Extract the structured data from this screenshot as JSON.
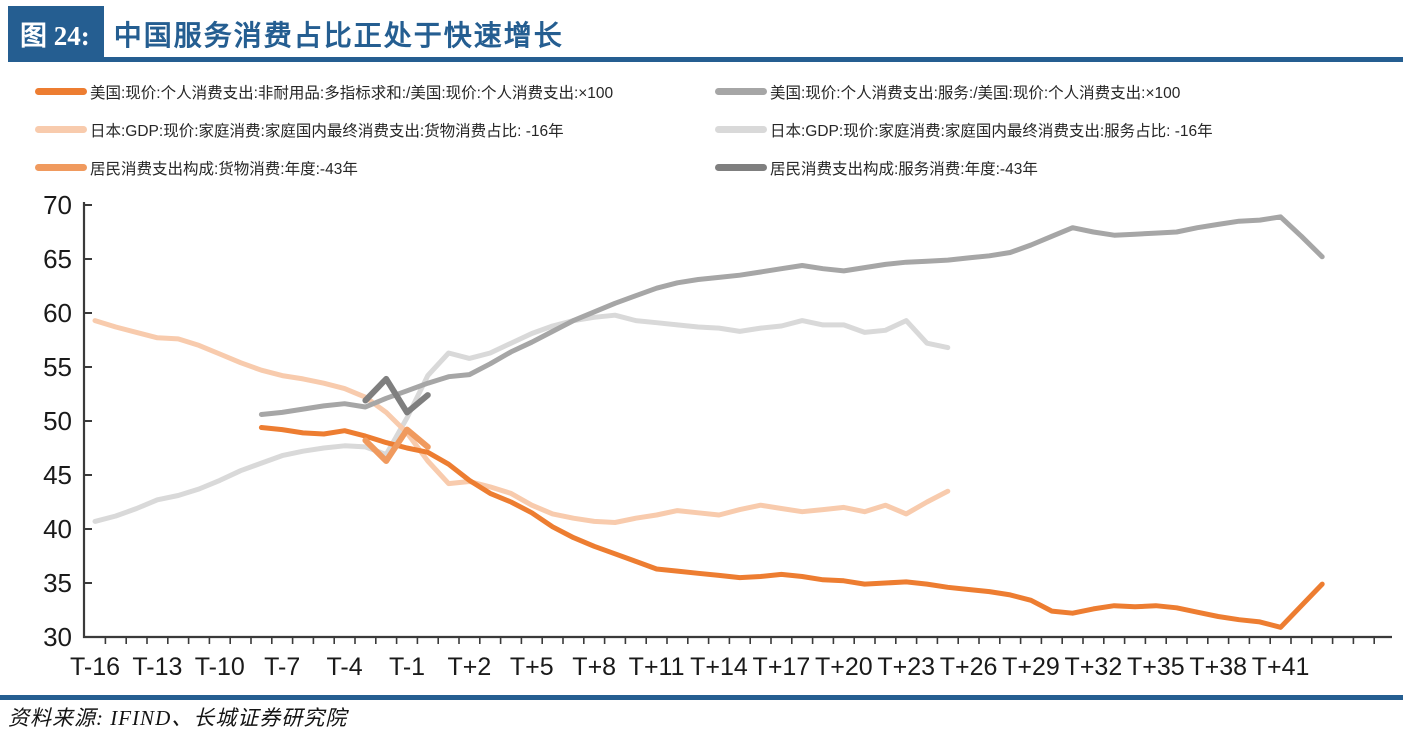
{
  "figure_label": "图 24:",
  "figure_title": "中国服务消费占比正处于快速增长",
  "source_text": "资料来源: IFIND、长城证券研究院",
  "theme": {
    "accent_blue": "#255E91",
    "axis_color": "#3A3A3A",
    "tick_label_color": "#1A1A1A",
    "legend_text_color": "#262626"
  },
  "chart_data": {
    "type": "line",
    "title": "中国服务消费占比正处于快速增长",
    "xlabel": "",
    "ylabel": "",
    "grid": false,
    "legend_position": "top-two-columns",
    "y_axis": {
      "range": [
        30,
        70
      ],
      "ticks": [
        70,
        65,
        60,
        55,
        50,
        45,
        40,
        35,
        30
      ]
    },
    "x_axis": {
      "range": [
        -16,
        44
      ],
      "tick_labels": [
        "T-16",
        "T-13",
        "T-10",
        "T-7",
        "T-4",
        "T-1",
        "T+2",
        "T+5",
        "T+8",
        "T+11",
        "T+14",
        "T+17",
        "T+20",
        "T+23",
        "T+26",
        "T+29",
        "T+32",
        "T+35",
        "T+38",
        "T+41"
      ],
      "tick_values": [
        -16,
        -13,
        -10,
        -7,
        -4,
        -1,
        2,
        5,
        8,
        11,
        14,
        17,
        20,
        23,
        26,
        29,
        32,
        35,
        38,
        41
      ]
    },
    "series": [
      {
        "id": "us_goods",
        "label": "美国:现价:个人消费支出:非耐用品:多指标求和:/美国:现价:个人消费支出:×100",
        "color": "#ED7D31",
        "width": 5,
        "x_start": -8,
        "values": [
          49.4,
          49.2,
          48.9,
          48.8,
          49.1,
          48.6,
          48.0,
          47.5,
          47.1,
          46.0,
          44.5,
          43.3,
          42.5,
          41.5,
          40.2,
          39.2,
          38.4,
          37.7,
          37.0,
          36.3,
          36.1,
          35.9,
          35.7,
          35.5,
          35.6,
          35.8,
          35.6,
          35.3,
          35.2,
          34.9,
          35.0,
          35.1,
          34.9,
          34.6,
          34.4,
          34.2,
          33.9,
          33.4,
          32.4,
          32.2,
          32.6,
          32.9,
          32.8,
          32.9,
          32.7,
          32.3,
          31.9,
          31.6,
          31.4,
          30.9,
          32.9,
          34.9
        ]
      },
      {
        "id": "us_services",
        "label": "美国:现价:个人消费支出:服务:/美国:现价:个人消费支出:×100",
        "color": "#A6A6A6",
        "width": 5,
        "x_start": -8,
        "values": [
          50.6,
          50.8,
          51.1,
          51.4,
          51.6,
          51.3,
          52.1,
          52.8,
          53.5,
          54.1,
          54.3,
          55.3,
          56.4,
          57.3,
          58.3,
          59.3,
          60.1,
          60.9,
          61.6,
          62.3,
          62.8,
          63.1,
          63.3,
          63.5,
          63.8,
          64.1,
          64.4,
          64.1,
          63.9,
          64.2,
          64.5,
          64.7,
          64.8,
          64.9,
          65.1,
          65.3,
          65.6,
          66.3,
          67.1,
          67.9,
          67.5,
          67.2,
          67.3,
          67.4,
          67.5,
          67.9,
          68.2,
          68.5,
          68.6,
          68.9,
          67.1,
          65.2
        ]
      },
      {
        "id": "japan_goods",
        "label": "日本:GDP:现价:家庭消费:家庭国内最终消费支出:货物消费占比: -16年",
        "color": "#F8CBAD",
        "width": 5,
        "x_start": -16,
        "values": [
          59.3,
          58.7,
          58.2,
          57.7,
          57.6,
          57.0,
          56.2,
          55.4,
          54.7,
          54.2,
          53.9,
          53.5,
          53.0,
          52.2,
          50.8,
          48.9,
          46.3,
          44.2,
          44.4,
          43.9,
          43.3,
          42.2,
          41.4,
          41.0,
          40.7,
          40.6,
          41.0,
          41.3,
          41.7,
          41.5,
          41.3,
          41.8,
          42.2,
          41.9,
          41.6,
          41.8,
          42.0,
          41.6,
          42.2,
          41.4,
          42.5,
          43.5
        ]
      },
      {
        "id": "japan_services",
        "label": "日本:GDP:现价:家庭消费:家庭国内最终消费支出:服务占比: -16年",
        "color": "#D9D9D9",
        "width": 5,
        "x_start": -16,
        "values": [
          40.7,
          41.2,
          41.9,
          42.7,
          43.1,
          43.7,
          44.5,
          45.4,
          46.1,
          46.8,
          47.2,
          47.5,
          47.7,
          47.6,
          46.9,
          50.3,
          54.2,
          56.3,
          55.8,
          56.3,
          57.2,
          58.1,
          58.8,
          59.3,
          59.6,
          59.8,
          59.3,
          59.1,
          58.9,
          58.7,
          58.6,
          58.3,
          58.6,
          58.8,
          59.3,
          58.9,
          58.9,
          58.2,
          58.4,
          59.3,
          57.2,
          56.8
        ]
      },
      {
        "id": "china_goods",
        "label": "居民消费支出构成:货物消费:年度:-43年",
        "color": "#F09A5E",
        "width": 6,
        "x_start": -3,
        "values": [
          48.2,
          46.3,
          49.2,
          47.6
        ]
      },
      {
        "id": "china_services",
        "label": "居民消费支出构成:服务消费:年度:-43年",
        "color": "#7F7F7F",
        "width": 6,
        "x_start": -3,
        "values": [
          51.9,
          53.9,
          50.8,
          52.4
        ]
      }
    ],
    "legend_order": [
      "us_goods",
      "us_services",
      "japan_goods",
      "japan_services",
      "china_goods",
      "china_services"
    ],
    "draw_order": [
      "japan_services",
      "japan_goods",
      "us_services",
      "us_goods",
      "china_services",
      "china_goods"
    ]
  }
}
